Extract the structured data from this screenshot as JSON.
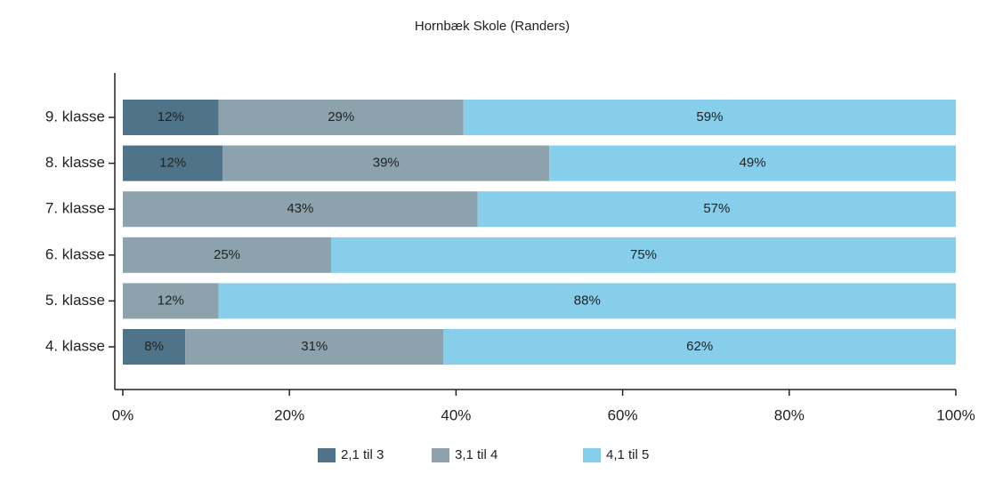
{
  "chart_data": {
    "type": "stacked-bar-horizontal",
    "title": "Hornbæk Skole (Randers)",
    "categories": [
      "9. klasse",
      "8. klasse",
      "7. klasse",
      "6. klasse",
      "5. klasse",
      "4. klasse"
    ],
    "series": [
      {
        "name": "2,1 til 3",
        "color": "#4f7489",
        "values": [
          11.5,
          12,
          null,
          null,
          null,
          7.5
        ],
        "value_labels": [
          "12%",
          "12%",
          null,
          null,
          null,
          "8%"
        ]
      },
      {
        "name": "3,1 til 4",
        "color": "#8ca3ae",
        "values": [
          29.4,
          39.2,
          42.6,
          25,
          11.5,
          31
        ],
        "value_labels": [
          "29%",
          "39%",
          "43%",
          "25%",
          "12%",
          "31%"
        ]
      },
      {
        "name": "4,1 til 5",
        "color": "#87ceeb",
        "values": [
          59.1,
          48.8,
          57.4,
          75,
          88.5,
          61.5
        ],
        "value_labels": [
          "59%",
          "49%",
          "57%",
          "75%",
          "88%",
          "62%"
        ]
      }
    ],
    "xlim": [
      0,
      100
    ],
    "xticks": [
      {
        "value": 0,
        "label": "0%"
      },
      {
        "value": 20,
        "label": "20%"
      },
      {
        "value": 40,
        "label": "40%"
      },
      {
        "value": 60,
        "label": "60%"
      },
      {
        "value": 80,
        "label": "80%"
      },
      {
        "value": 100,
        "label": "100%"
      }
    ],
    "legend": "bottom"
  }
}
